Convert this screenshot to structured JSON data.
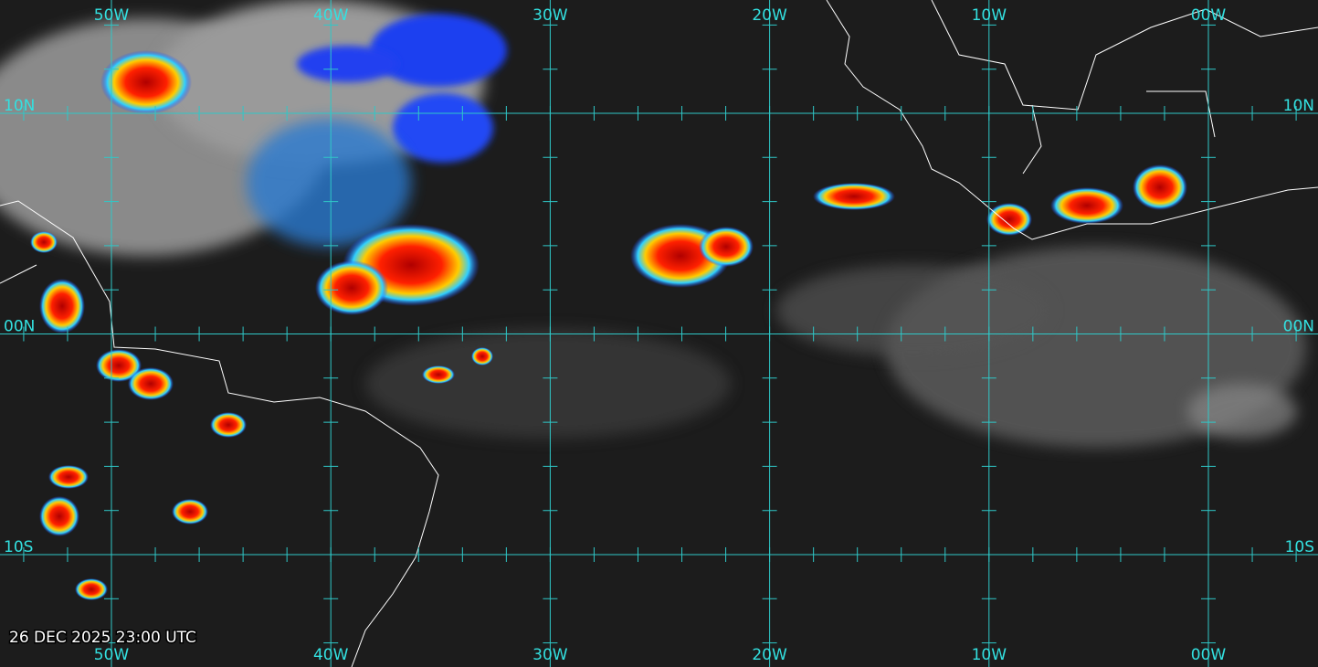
{
  "grid": {
    "longitudes": [
      "50W",
      "40W",
      "30W",
      "20W",
      "10W",
      "00W"
    ],
    "latitudes": [
      "10N",
      "00N",
      "10S"
    ]
  },
  "timestamp": "26 DEC 2025 23:00 UTC"
}
